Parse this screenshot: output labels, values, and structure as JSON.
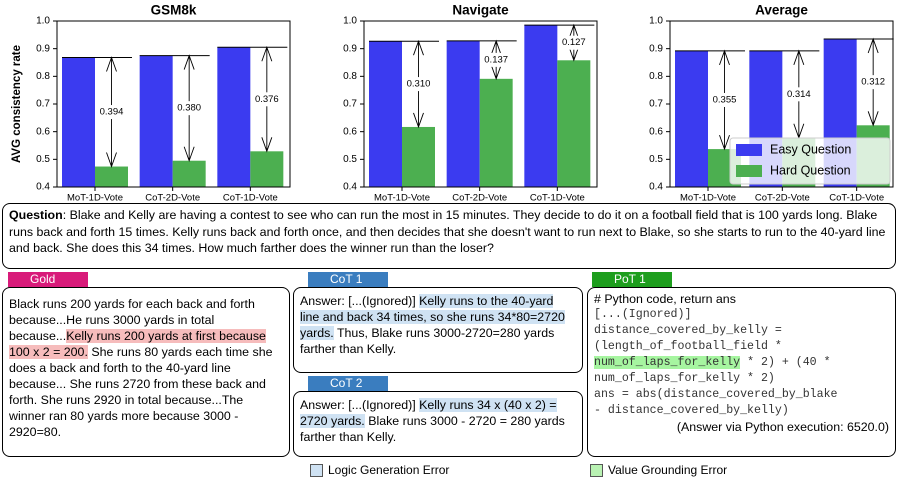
{
  "chart_data": [
    {
      "type": "bar",
      "title": "GSM8k",
      "ylabel": "AVG consistency rate",
      "categories": [
        "MoT-1D-Vote",
        "CoT-2D-Vote",
        "CoT-1D-Vote"
      ],
      "series": [
        {
          "color": "#3b3bf0",
          "values": [
            0.868,
            0.875,
            0.905
          ]
        },
        {
          "color": "#4caf50",
          "values": [
            0.474,
            0.495,
            0.529
          ]
        }
      ],
      "annotations": [
        "0.394",
        "0.380",
        "0.376"
      ],
      "ylim": [
        0.4,
        1.0
      ],
      "yticks": [
        0.4,
        0.5,
        0.6,
        0.7,
        0.8,
        0.9,
        {
          "value": 1.0,
          "label": "1.0"
        }
      ]
    },
    {
      "type": "bar",
      "title": "Navigate",
      "categories": [
        "MoT-1D-Vote",
        "CoT-2D-Vote",
        "CoT-1D-Vote"
      ],
      "series": [
        {
          "color": "#3b3bf0",
          "values": [
            0.927,
            0.928,
            0.985
          ]
        },
        {
          "color": "#4caf50",
          "values": [
            0.617,
            0.791,
            0.858
          ]
        }
      ],
      "annotations": [
        "0.310",
        "0.137",
        "0.127"
      ],
      "ylim": [
        0.4,
        1.0
      ],
      "yticks": [
        0.4,
        0.5,
        0.6,
        0.7,
        0.8,
        0.9,
        {
          "value": 1.0,
          "label": "1.0"
        }
      ]
    },
    {
      "type": "bar",
      "title": "Average",
      "categories": [
        "MoT-1D-Vote",
        "CoT-2D-Vote",
        "CoT-1D-Vote"
      ],
      "series": [
        {
          "name": "Easy Question",
          "color": "#3b3bf0",
          "values": [
            0.892,
            0.892,
            0.935
          ]
        },
        {
          "name": "Hard Question",
          "color": "#4caf50",
          "values": [
            0.537,
            0.578,
            0.623
          ]
        }
      ],
      "annotations": [
        "0.355",
        "0.314",
        "0.312"
      ],
      "legend": "lower right",
      "ylim": [
        0.4,
        1.0
      ],
      "yticks": [
        0.4,
        0.5,
        0.6,
        0.7,
        0.8,
        0.9,
        {
          "value": 1.0,
          "label": "1.0"
        }
      ]
    }
  ],
  "question": {
    "label": "Question",
    "text": ": Blake and Kelly are having a contest to see who can run the most in 15 minutes. They decide to do it on a football field that is 100 yards long. Blake runs back and forth 15 times. Kelly runs back and forth once, and then decides that she doesn't want to run next to Blake, so she starts to run to the 40-yard line and back. She does this 34 times. How much farther does the winner run than the loser?"
  },
  "gold": {
    "tag": "Gold",
    "color": "#d81b7a",
    "parts": [
      {
        "text": "Black runs 200 yards for each back and forth because...He runs 3000 yards in total because..."
      },
      {
        "text": "Kelly runs 200 yards at first because 100 x 2 = 200.",
        "highlight": "#f6bcbc"
      },
      {
        "text": " She runs 80 yards each time she does a back and forth to the 40-yard line because... She runs 2720 from these back and forth. She runs 2920 in total because...The winner ran 80 yards more because 3000 - 2920=80."
      }
    ]
  },
  "cot1": {
    "tag": "CoT 1",
    "color": "#3a7dbf",
    "parts": [
      {
        "text": "Answer: [...(Ignored)] "
      },
      {
        "text": "Kelly runs to the 40-yard line and back 34 times, so she runs 34*80=2720 yards.",
        "highlight": "#cfe2f3"
      },
      {
        "text": " Thus, Blake runs 3000-2720=280 yards farther than Kelly."
      }
    ]
  },
  "cot2": {
    "tag": "CoT 2",
    "color": "#3a7dbf",
    "parts": [
      {
        "text": "Answer: [...(Ignored)] "
      },
      {
        "text": "Kelly runs 34 x (40 x 2) = 2720 yards.",
        "highlight": "#cfe2f3"
      },
      {
        "text": " Blake runs 3000 - 2720 = 280 yards farther than Kelly."
      }
    ]
  },
  "pot1": {
    "tag": "PoT 1",
    "color": "#1e9e1e",
    "comment": "# Python code, return ans",
    "code": [
      [
        {
          "text": "[...(Ignored)]"
        }
      ],
      [
        {
          "text": "distance_covered_by_kelly ="
        }
      ],
      [
        {
          "text": "(length_of_football_field *"
        }
      ],
      [
        {
          "text": "num_of_laps_for_kelly",
          "highlight": "#a6f5a0"
        },
        {
          "text": " * 2) + (40 *"
        }
      ],
      [
        {
          "text": "num_of_laps_for_kelly * 2)"
        }
      ],
      [
        {
          "text": "ans = abs(distance_covered_by_blake"
        }
      ],
      [
        {
          "text": "- distance_covered_by_kelly)"
        }
      ]
    ],
    "result": "(Answer via Python execution: 6520.0)"
  },
  "legend": [
    {
      "label": "Logic Generation Error",
      "color": "#cfe2f3"
    },
    {
      "label": "Value Grounding Error",
      "color": "#b9f2b3"
    }
  ]
}
